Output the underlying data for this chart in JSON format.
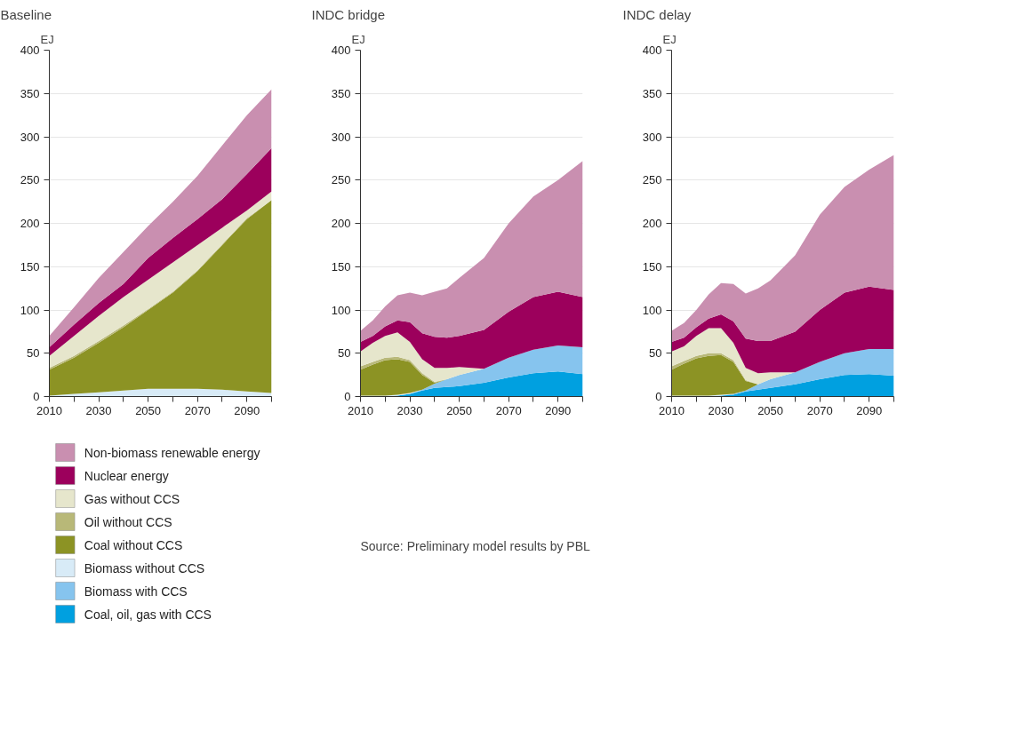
{
  "chart_data": [
    {
      "type": "area",
      "stacked": true,
      "title": "Baseline",
      "ylabel": "EJ",
      "legend": "bottom",
      "grid": "y",
      "x": [
        2010,
        2020,
        2030,
        2040,
        2050,
        2060,
        2070,
        2080,
        2090,
        2100
      ],
      "xlim": [
        2010,
        2100
      ],
      "ylim": [
        0,
        400
      ],
      "xticks": [
        2010,
        {
          "value": 2020,
          "label": null
        },
        2030,
        {
          "value": 2040,
          "label": null
        },
        2050,
        {
          "value": 2060,
          "label": null
        },
        2070,
        {
          "value": 2080,
          "label": null
        },
        2090,
        {
          "value": 2100,
          "label": null
        }
      ],
      "yticks": [
        0,
        50,
        100,
        150,
        200,
        250,
        300,
        350,
        400
      ],
      "series": [
        {
          "name": "Coal, oil, gas with CCS",
          "color": "#00a0e0",
          "values": [
            null,
            null,
            null,
            null,
            null,
            null,
            null,
            null,
            null,
            null
          ]
        },
        {
          "name": "Biomass with CCS",
          "color": "#86c4ee",
          "values": [
            null,
            null,
            null,
            null,
            null,
            null,
            null,
            null,
            null,
            null
          ]
        },
        {
          "name": "Biomass without CCS",
          "color": "#d8ebf7",
          "values": [
            1,
            3,
            5,
            7,
            9,
            9,
            9,
            8,
            6,
            4
          ]
        },
        {
          "name": "Coal without CCS",
          "color": "#8c9324",
          "values": [
            30,
            42,
            57,
            73,
            91,
            111,
            136,
            167,
            199,
            223
          ]
        },
        {
          "name": "Oil without CCS",
          "color": "#b8b878",
          "values": [
            2,
            2,
            2,
            2,
            1,
            1,
            1,
            1,
            1,
            0
          ]
        },
        {
          "name": "Gas without CCS",
          "color": "#e6e6cc",
          "values": [
            14,
            23,
            29,
            33,
            34,
            34,
            29,
            19,
            9,
            10
          ]
        },
        {
          "name": "Nuclear energy",
          "color": "#9c005c",
          "values": [
            10,
            13,
            15,
            15,
            25,
            28,
            30,
            33,
            42,
            50
          ]
        },
        {
          "name": "Non-biomass renewable energy",
          "color": "#c98fb0",
          "values": [
            13,
            20,
            29,
            37,
            37,
            42,
            50,
            62,
            68,
            68
          ]
        }
      ]
    },
    {
      "type": "area",
      "stacked": true,
      "title": "INDC bridge",
      "ylabel": "EJ",
      "grid": "y",
      "annotations": [
        "Source: Preliminary model results by PBL"
      ],
      "x": [
        2010,
        2015,
        2020,
        2025,
        2030,
        2035,
        2040,
        2045,
        2050,
        2060,
        2070,
        2080,
        2090,
        2100
      ],
      "xlim": [
        2010,
        2100
      ],
      "ylim": [
        0,
        400
      ],
      "xticks": [
        2010,
        {
          "value": 2020,
          "label": null
        },
        2030,
        {
          "value": 2040,
          "label": null
        },
        2050,
        {
          "value": 2060,
          "label": null
        },
        2070,
        {
          "value": 2080,
          "label": null
        },
        2090,
        {
          "value": 2100,
          "label": null
        }
      ],
      "yticks": [
        0,
        50,
        100,
        150,
        200,
        250,
        300,
        350,
        400
      ],
      "series": [
        {
          "color": "#00a0e0",
          "values": [
            null,
            null,
            0,
            1,
            3,
            7,
            10,
            11,
            12,
            16,
            22,
            27,
            29,
            26
          ]
        },
        {
          "color": "#86c4ee",
          "values": [
            null,
            null,
            null,
            null,
            0,
            1,
            5,
            9,
            13,
            16,
            23,
            27,
            30,
            31
          ]
        },
        {
          "color": "#d8ebf7",
          "values": [
            1,
            1,
            1,
            1,
            1,
            0,
            null,
            null,
            null,
            null,
            null,
            null,
            null,
            null
          ]
        },
        {
          "color": "#8c9324",
          "values": [
            30,
            36,
            41,
            41,
            36,
            17,
            1,
            0,
            null,
            null,
            null,
            null,
            null,
            null
          ]
        },
        {
          "color": "#b8b878",
          "values": [
            4,
            3,
            3,
            3,
            2,
            2,
            1,
            0,
            null,
            null,
            null,
            null,
            null,
            null
          ]
        },
        {
          "color": "#e6e6cc",
          "values": [
            17,
            22,
            25,
            28,
            21,
            16,
            16,
            13,
            9,
            0,
            null,
            null,
            null,
            null
          ]
        },
        {
          "color": "#9c005c",
          "values": [
            11,
            8,
            11,
            14,
            23,
            30,
            36,
            35,
            36,
            45,
            53,
            61,
            62,
            58
          ]
        },
        {
          "color": "#c98fb0",
          "values": [
            13,
            18,
            23,
            29,
            34,
            44,
            52,
            57,
            67,
            83,
            102,
            116,
            129,
            157
          ]
        }
      ]
    },
    {
      "type": "area",
      "stacked": true,
      "title": "INDC delay",
      "ylabel": "EJ",
      "grid": "y",
      "x": [
        2010,
        2015,
        2020,
        2025,
        2030,
        2035,
        2040,
        2045,
        2050,
        2060,
        2070,
        2080,
        2090,
        2100
      ],
      "xlim": [
        2010,
        2100
      ],
      "ylim": [
        0,
        400
      ],
      "xticks": [
        2010,
        {
          "value": 2020,
          "label": null
        },
        2030,
        {
          "value": 2040,
          "label": null
        },
        2050,
        {
          "value": 2060,
          "label": null
        },
        2070,
        {
          "value": 2080,
          "label": null
        },
        2090,
        {
          "value": 2100,
          "label": null
        }
      ],
      "yticks": [
        0,
        50,
        100,
        150,
        200,
        250,
        300,
        350,
        400
      ],
      "series": [
        {
          "color": "#00a0e0",
          "values": [
            null,
            null,
            null,
            0,
            1,
            2,
            6,
            8,
            10,
            14,
            20,
            25,
            26,
            24
          ]
        },
        {
          "color": "#86c4ee",
          "values": [
            null,
            null,
            null,
            null,
            0,
            1,
            1,
            6,
            10,
            14,
            20,
            25,
            29,
            31
          ]
        },
        {
          "color": "#d8ebf7",
          "values": [
            1,
            1,
            1,
            1,
            1,
            0,
            null,
            null,
            null,
            null,
            null,
            null,
            null,
            null
          ]
        },
        {
          "color": "#8c9324",
          "values": [
            30,
            37,
            43,
            46,
            46,
            37,
            11,
            0,
            null,
            null,
            null,
            null,
            null,
            null
          ]
        },
        {
          "color": "#b8b878",
          "values": [
            4,
            3,
            3,
            3,
            2,
            2,
            1,
            0,
            null,
            null,
            null,
            null,
            null,
            null
          ]
        },
        {
          "color": "#e6e6cc",
          "values": [
            17,
            17,
            23,
            29,
            29,
            20,
            14,
            13,
            8,
            0,
            null,
            null,
            null,
            null
          ]
        },
        {
          "color": "#9c005c",
          "values": [
            11,
            10,
            10,
            11,
            16,
            25,
            34,
            37,
            36,
            47,
            60,
            70,
            72,
            68
          ]
        },
        {
          "color": "#c98fb0",
          "values": [
            13,
            17,
            20,
            28,
            36,
            43,
            52,
            61,
            70,
            88,
            110,
            122,
            135,
            156
          ]
        }
      ]
    }
  ]
}
